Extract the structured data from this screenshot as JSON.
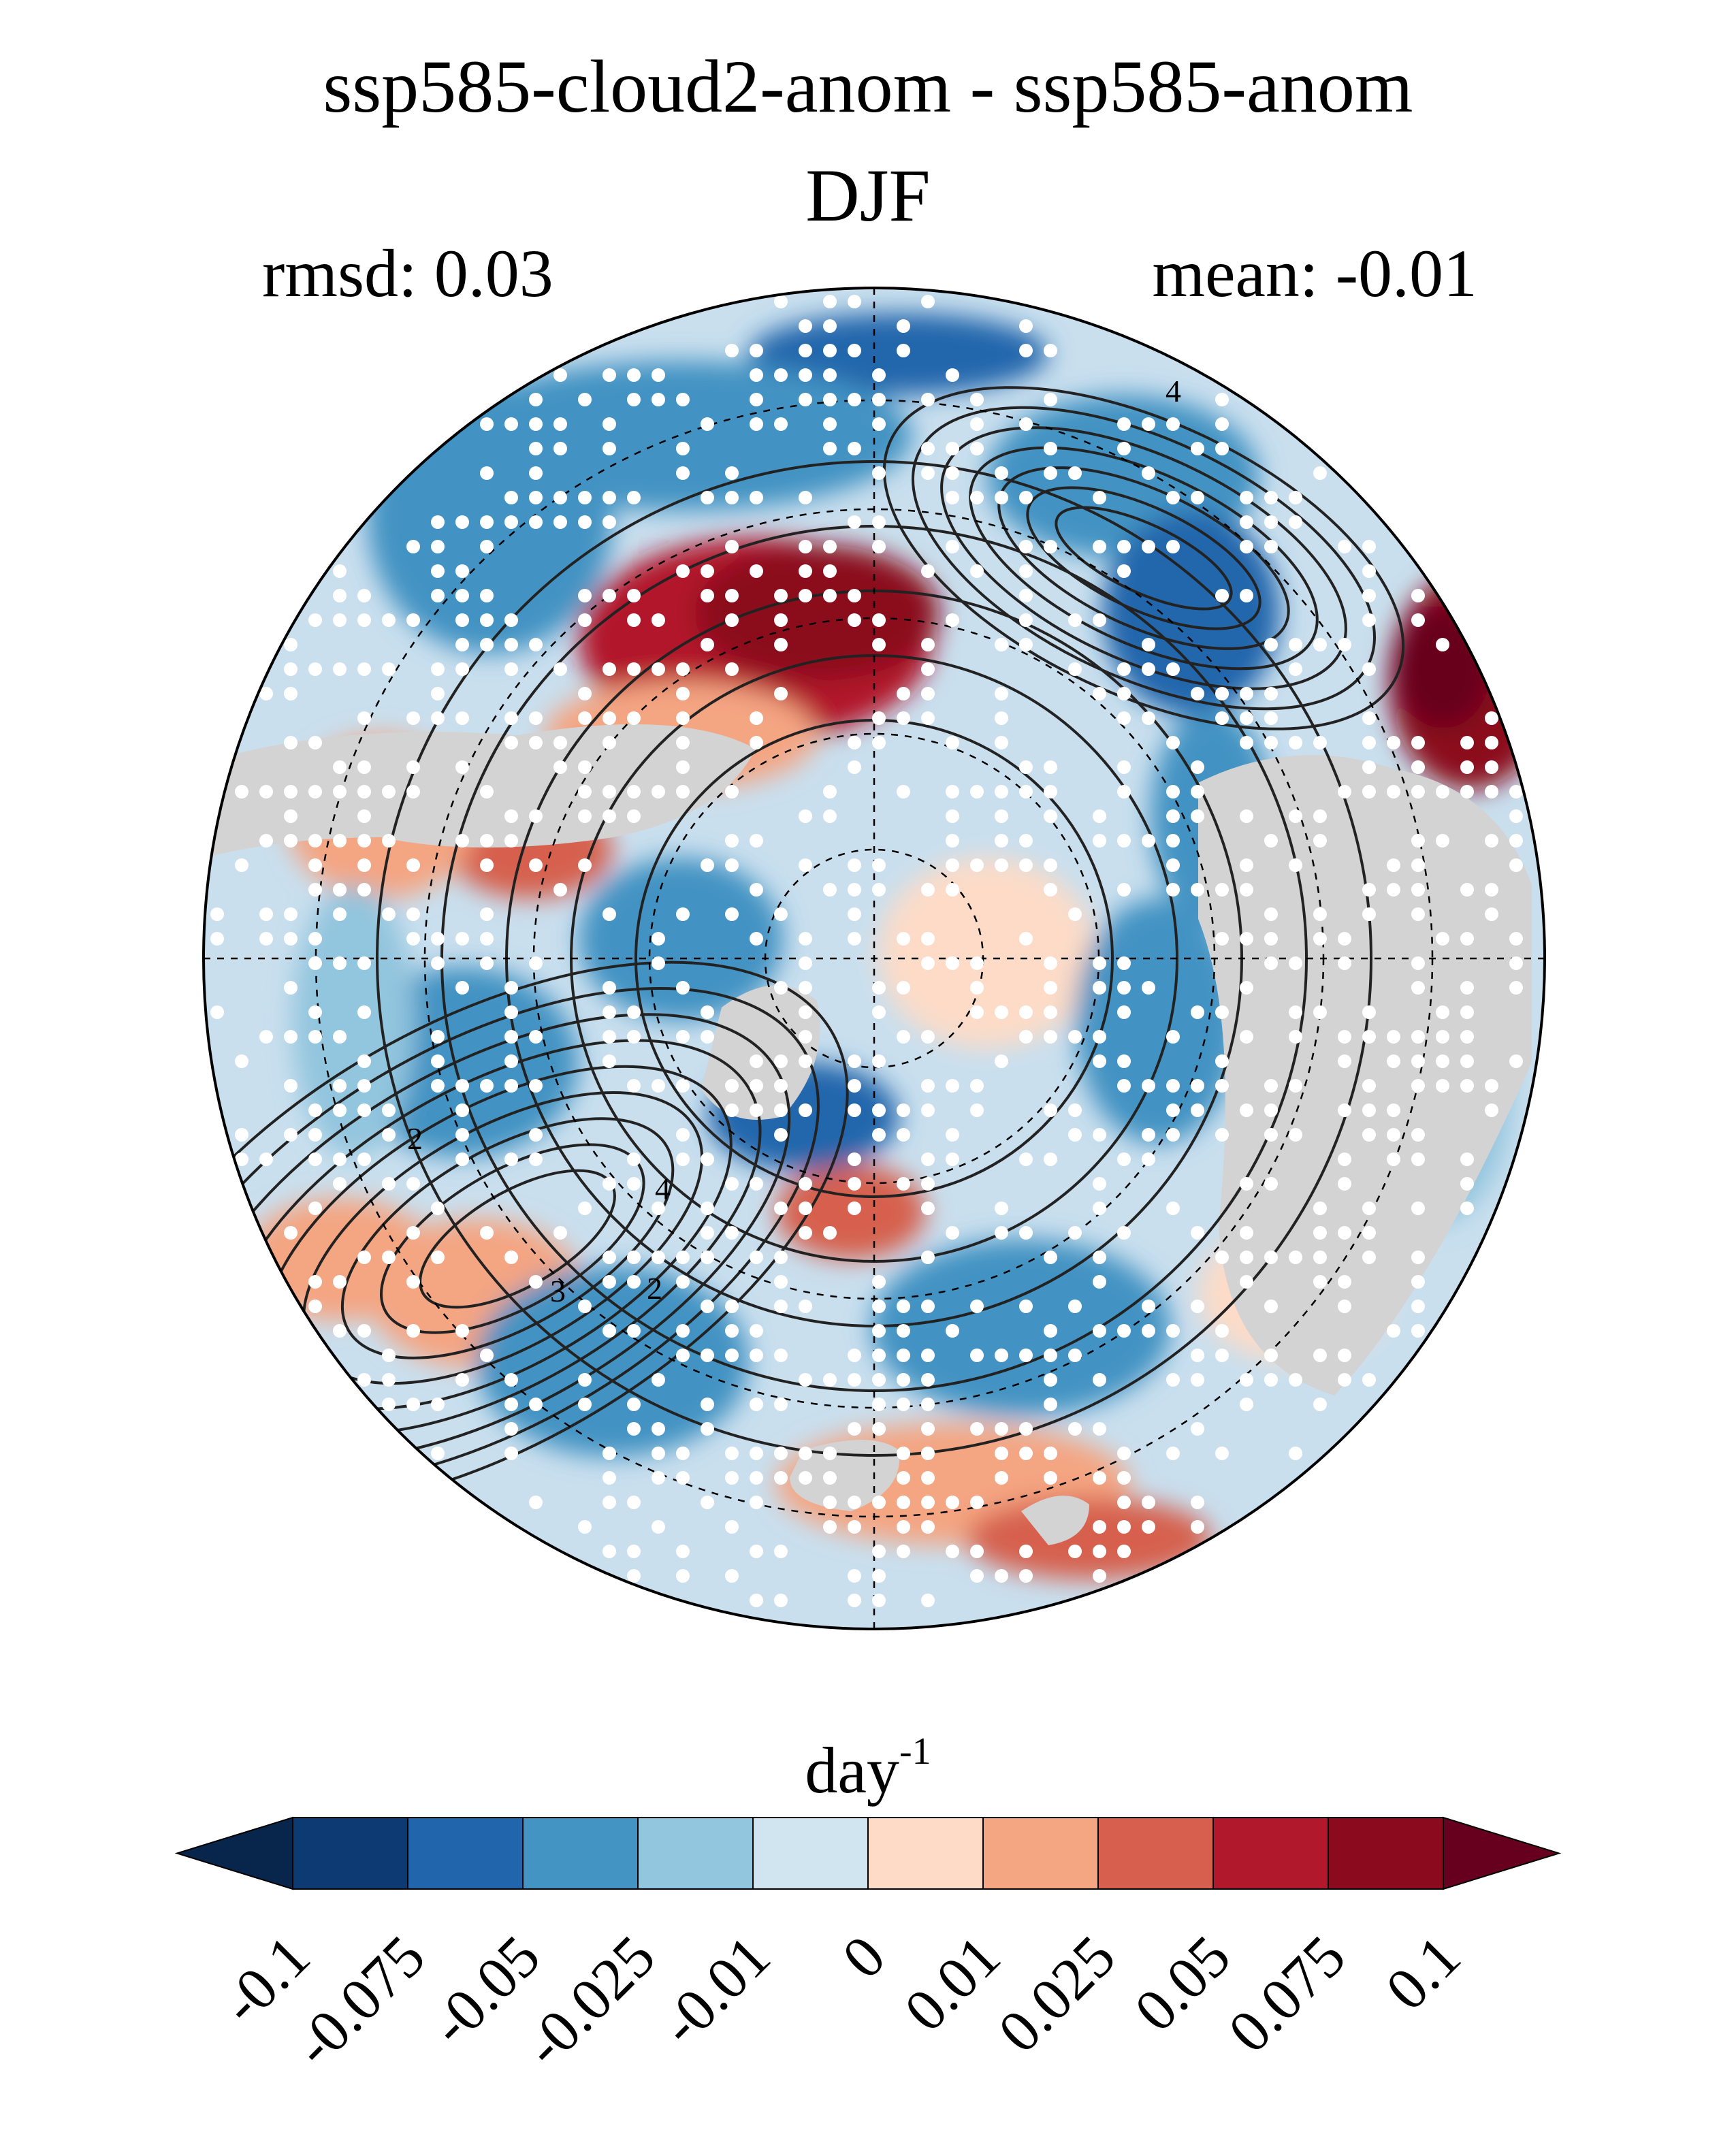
{
  "header": {
    "title": "ssp585-cloud2-anom - ssp585-anom",
    "season": "DJF",
    "rmsd": "rmsd: 0.03",
    "mean": "mean: -0.01"
  },
  "map": {
    "projection": "north-polar-stereographic",
    "stippling": true,
    "contour_labels": [
      "4",
      "2",
      "4",
      "2",
      "3"
    ],
    "land_mask_color": "#d3d3d3"
  },
  "colorbar": {
    "unit_base": "day",
    "unit_exp": "-1",
    "tick_labels": [
      "-0.1",
      "-0.075",
      "-0.05",
      "-0.025",
      "-0.01",
      "0",
      "0.01",
      "0.025",
      "0.05",
      "0.075",
      "0.1"
    ],
    "colors": [
      "#08254c",
      "#0d3a73",
      "#2166ac",
      "#4393c3",
      "#92c5de",
      "#d1e5f0",
      "#fddbc7",
      "#f4a582",
      "#d6604d",
      "#b2182b",
      "#8b0a1e",
      "#67001f"
    ]
  },
  "chart_data": {
    "type": "heatmap",
    "title": "ssp585-cloud2-anom - ssp585-anom",
    "subtitle": "DJF",
    "statistics": {
      "rmsd": 0.03,
      "mean": -0.01
    },
    "colorbar_levels": [
      -0.1,
      -0.075,
      -0.05,
      -0.025,
      -0.01,
      0,
      0.01,
      0.025,
      0.05,
      0.075,
      0.1
    ],
    "unit": "day-1",
    "extend": "both"
  }
}
